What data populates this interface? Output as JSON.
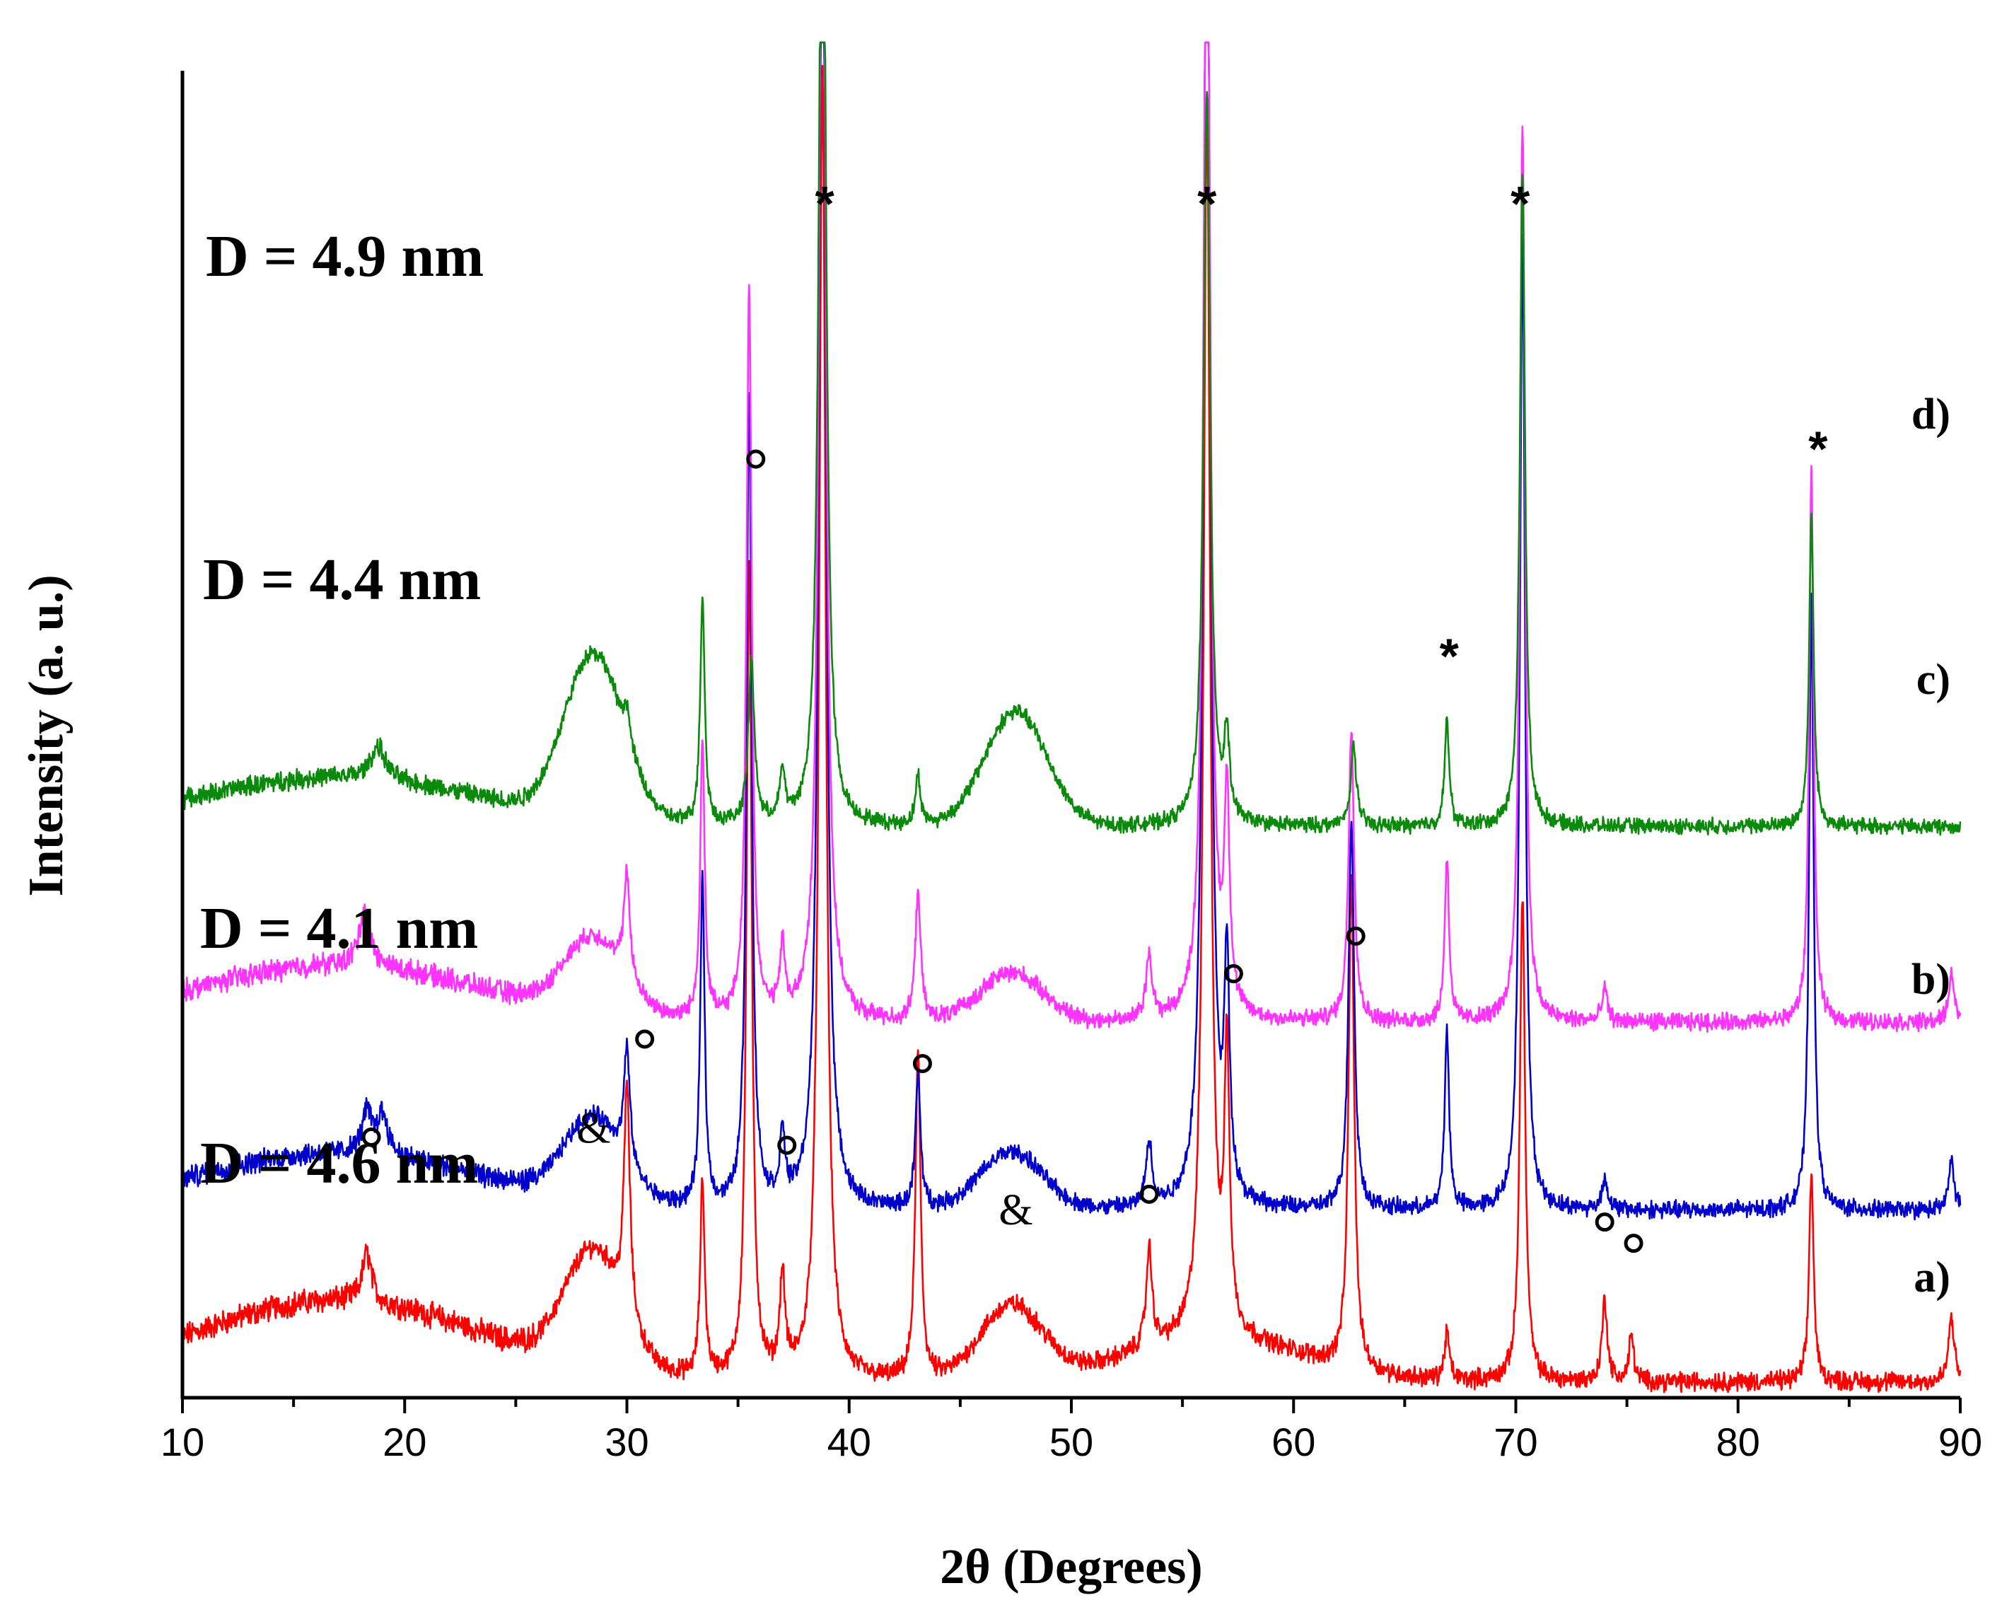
{
  "chart_data": {
    "type": "line",
    "xlabel": "2θ (Degrees)",
    "ylabel": "Intensity (a. u.)",
    "xlim": [
      10,
      90
    ],
    "xticks": [
      "10",
      "20",
      "30",
      "40",
      "50",
      "60",
      "70",
      "80",
      "90"
    ],
    "series": [
      {
        "name": "a)",
        "size_label": "D = 4.6 nm",
        "color": "#ff0000",
        "baseline": 0.0,
        "noise": 0.9,
        "broad": [
          [
            17.0,
            6.5,
            5.0
          ],
          [
            28.5,
            1.3,
            7.0
          ],
          [
            47.3,
            1.4,
            4.5
          ],
          [
            56.5,
            4.0,
            2.5
          ]
        ],
        "peaks": [
          [
            18.3,
            0.25,
            3.0
          ],
          [
            30.0,
            0.16,
            14.0
          ],
          [
            33.4,
            0.12,
            12.0
          ],
          [
            35.5,
            0.14,
            50.0
          ],
          [
            37.0,
            0.14,
            6.0
          ],
          [
            38.8,
            0.18,
            80.0
          ],
          [
            43.1,
            0.14,
            20.0
          ],
          [
            53.5,
            0.16,
            6.0
          ],
          [
            56.1,
            0.18,
            75.0
          ],
          [
            57.0,
            0.14,
            17.0
          ],
          [
            62.6,
            0.15,
            30.0
          ],
          [
            66.9,
            0.12,
            3.0
          ],
          [
            70.3,
            0.14,
            30.0
          ],
          [
            74.0,
            0.14,
            5.0
          ],
          [
            75.2,
            0.12,
            3.0
          ],
          [
            83.3,
            0.12,
            13.0
          ],
          [
            89.6,
            0.15,
            4.0
          ]
        ]
      },
      {
        "name": "b)",
        "size_label": "D = 4.1 nm",
        "color": "#0000cc",
        "baseline": 10.5,
        "noise": 0.8,
        "broad": [
          [
            17.0,
            6.5,
            3.5
          ],
          [
            28.5,
            1.3,
            5.0
          ],
          [
            47.3,
            1.4,
            3.5
          ]
        ],
        "peaks": [
          [
            18.3,
            0.25,
            2.5
          ],
          [
            19.0,
            0.3,
            2.5
          ],
          [
            30.0,
            0.16,
            7.0
          ],
          [
            33.4,
            0.12,
            20.0
          ],
          [
            35.5,
            0.14,
            50.0
          ],
          [
            37.0,
            0.14,
            4.0
          ],
          [
            38.8,
            0.18,
            90.0
          ],
          [
            43.1,
            0.14,
            8.0
          ],
          [
            53.5,
            0.16,
            4.0
          ],
          [
            56.1,
            0.18,
            90.0
          ],
          [
            57.0,
            0.14,
            14.0
          ],
          [
            62.6,
            0.15,
            24.0
          ],
          [
            66.9,
            0.12,
            11.0
          ],
          [
            70.3,
            0.14,
            60.0
          ],
          [
            74.0,
            0.14,
            2.0
          ],
          [
            83.3,
            0.12,
            38.0
          ],
          [
            89.6,
            0.15,
            3.0
          ]
        ]
      },
      {
        "name": "c)",
        "size_label": "D = 4.4 nm",
        "color": "#ff33ff",
        "baseline": 22.0,
        "noise": 0.8,
        "broad": [
          [
            17.0,
            6.5,
            3.5
          ],
          [
            28.5,
            1.3,
            4.5
          ],
          [
            47.3,
            1.4,
            3.0
          ]
        ],
        "peaks": [
          [
            18.2,
            0.3,
            3.5
          ],
          [
            30.0,
            0.16,
            6.5
          ],
          [
            33.4,
            0.12,
            17.0
          ],
          [
            35.5,
            0.14,
            45.0
          ],
          [
            37.0,
            0.14,
            4.0
          ],
          [
            38.8,
            0.18,
            80.0
          ],
          [
            43.1,
            0.14,
            8.0
          ],
          [
            53.5,
            0.16,
            4.0
          ],
          [
            56.1,
            0.18,
            75.0
          ],
          [
            57.0,
            0.14,
            13.0
          ],
          [
            62.6,
            0.15,
            18.0
          ],
          [
            66.9,
            0.12,
            10.0
          ],
          [
            70.3,
            0.14,
            55.0
          ],
          [
            74.0,
            0.14,
            2.0
          ],
          [
            83.3,
            0.12,
            34.0
          ],
          [
            89.6,
            0.15,
            3.0
          ]
        ]
      },
      {
        "name": "d)",
        "size_label": "D = 4.9 nm",
        "color": "#0a8a0a",
        "baseline": 34.0,
        "noise": 0.7,
        "broad": [
          [
            17.0,
            6.5,
            3.0
          ],
          [
            28.5,
            1.3,
            10.0
          ],
          [
            47.5,
            1.4,
            7.0
          ]
        ],
        "peaks": [
          [
            18.8,
            0.4,
            2.0
          ],
          [
            30.0,
            0.16,
            2.0
          ],
          [
            33.4,
            0.12,
            14.0
          ],
          [
            35.6,
            0.16,
            10.0
          ],
          [
            37.0,
            0.14,
            3.0
          ],
          [
            38.8,
            0.18,
            70.0
          ],
          [
            43.1,
            0.14,
            3.0
          ],
          [
            56.1,
            0.18,
            45.0
          ],
          [
            57.0,
            0.14,
            5.0
          ],
          [
            62.7,
            0.15,
            5.0
          ],
          [
            66.9,
            0.12,
            6.5
          ],
          [
            70.3,
            0.14,
            40.0
          ],
          [
            83.3,
            0.12,
            19.0
          ]
        ]
      }
    ],
    "annotations": [
      {
        "type": "star",
        "text": "*",
        "x": 38.9,
        "y": 73.0
      },
      {
        "type": "star",
        "text": "*",
        "x": 56.1,
        "y": 73.0
      },
      {
        "type": "star",
        "text": "*",
        "x": 70.2,
        "y": 73.0
      },
      {
        "type": "star",
        "text": "*",
        "x": 67.0,
        "y": 45.3
      },
      {
        "type": "star",
        "text": "*",
        "x": 83.6,
        "y": 58.0
      },
      {
        "type": "circle",
        "x": 35.8,
        "y": 56.5
      },
      {
        "type": "circle",
        "x": 18.5,
        "y": 15.0
      },
      {
        "type": "circle",
        "x": 30.8,
        "y": 21.0
      },
      {
        "type": "circle",
        "x": 37.2,
        "y": 14.5
      },
      {
        "type": "circle",
        "x": 43.3,
        "y": 19.5
      },
      {
        "type": "circle",
        "x": 53.5,
        "y": 11.5
      },
      {
        "type": "circle",
        "x": 57.3,
        "y": 25.0
      },
      {
        "type": "circle",
        "x": 62.8,
        "y": 27.3
      },
      {
        "type": "circle",
        "x": 74.0,
        "y": 9.8
      },
      {
        "type": "circle",
        "x": 75.3,
        "y": 8.5
      },
      {
        "type": "amp",
        "text": "&",
        "x": 28.5,
        "y": 15.6
      },
      {
        "type": "amp",
        "text": "&",
        "x": 47.5,
        "y": 10.6
      }
    ]
  }
}
